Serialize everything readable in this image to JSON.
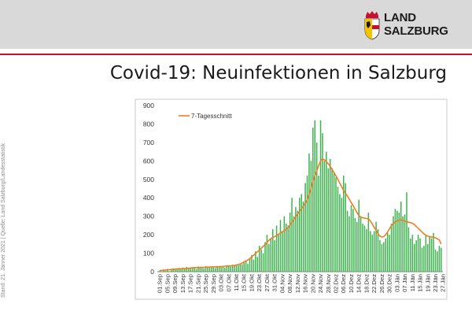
{
  "header": {
    "logo_line1": "LAND",
    "logo_line2": "SALZBURG",
    "title": "Covid-19: Neuinfektionen in Salzburg"
  },
  "side_note": "Stand: 21. Jänner 2021 | Quelle: Land Salzburg/Landesstatistik",
  "colors": {
    "bar": "#3fb34f",
    "avg_line": "#ef7d22",
    "accent_red": "#c8102e",
    "header_band": "#d9d9d9"
  },
  "chart_data": {
    "type": "bar",
    "title": "Covid-19: Neuinfektionen in Salzburg",
    "xlabel": "",
    "ylabel": "",
    "ylim": [
      0,
      900
    ],
    "yticks": [
      0,
      100,
      200,
      300,
      400,
      500,
      600,
      700,
      800,
      900
    ],
    "grid": false,
    "legend": [
      {
        "name": "7-Tagesschnitt",
        "position": "top-left"
      }
    ],
    "date_labels": [
      "01.Sep",
      "05.Sep",
      "09.Sep",
      "13.Sep",
      "17.Sep",
      "21.Sep",
      "25.Sep",
      "29.Sep",
      "03.Okt",
      "07.Okt",
      "11.Okt",
      "15.Okt",
      "19.Okt",
      "23.Okt",
      "27.Okt",
      "31.Okt",
      "04.Nov",
      "08.Nov",
      "12.Nov",
      "16.Nov",
      "20.Nov",
      "24.Nov",
      "28.Nov",
      "02.Dez",
      "06.Dez",
      "10.Dez",
      "14.Dez",
      "18.Dez",
      "22.Dez",
      "26.Dez",
      "30.Dez",
      "03.Jän",
      "07.Jän",
      "11.Jän",
      "15.Jän",
      "19.Jän",
      "23.Jän",
      "27.Jän"
    ],
    "series": [
      {
        "name": "Neuinfektionen",
        "kind": "bar",
        "values": [
          8,
          2,
          12,
          4,
          15,
          3,
          10,
          18,
          15,
          12,
          20,
          14,
          22,
          16,
          25,
          18,
          20,
          22,
          25,
          15,
          28,
          20,
          24,
          18,
          30,
          26,
          22,
          28,
          25,
          20,
          30,
          28,
          25,
          30,
          22,
          35,
          30,
          28,
          38,
          32,
          40,
          35,
          45,
          40,
          55,
          60,
          42,
          70,
          90,
          65,
          110,
          80,
          140,
          120,
          100,
          160,
          200,
          150,
          180,
          230,
          170,
          250,
          200,
          280,
          220,
          300,
          260,
          250,
          320,
          400,
          300,
          350,
          330,
          400,
          420,
          380,
          480,
          520,
          640,
          600,
          780,
          820,
          700,
          520,
          820,
          750,
          600,
          650,
          560,
          610,
          560,
          540,
          510,
          460,
          420,
          400,
          520,
          480,
          330,
          300,
          360,
          340,
          290,
          270,
          390,
          300,
          260,
          250,
          230,
          320,
          220,
          200,
          220,
          270,
          230,
          170,
          150,
          160,
          180,
          210,
          200,
          260,
          300,
          340,
          330,
          320,
          380,
          300,
          310,
          430,
          240,
          180,
          200,
          150,
          170,
          200,
          180,
          130,
          140,
          200,
          150,
          190,
          180,
          210,
          120,
          110,
          140,
          130
        ],
        "color": "#3fb34f"
      },
      {
        "name": "7-Tagesschnitt",
        "kind": "line",
        "values": [
          6,
          7,
          8,
          9,
          10,
          11,
          12,
          13,
          14,
          15,
          15,
          16,
          17,
          17,
          18,
          19,
          20,
          21,
          21,
          22,
          22,
          23,
          23,
          24,
          24,
          25,
          25,
          26,
          26,
          26,
          27,
          27,
          28,
          28,
          29,
          30,
          31,
          32,
          33,
          34,
          36,
          39,
          42,
          47,
          53,
          58,
          63,
          71,
          80,
          89,
          98,
          108,
          117,
          127,
          137,
          146,
          158,
          170,
          179,
          186,
          190,
          196,
          203,
          210,
          216,
          223,
          230,
          237,
          252,
          268,
          282,
          297,
          312,
          327,
          341,
          356,
          370,
          390,
          420,
          450,
          490,
          520,
          545,
          575,
          601,
          611,
          606,
          596,
          585,
          570,
          554,
          537,
          519,
          500,
          480,
          460,
          440,
          425,
          410,
          392,
          374,
          357,
          340,
          320,
          305,
          295,
          292,
          290,
          288,
          286,
          275,
          258,
          240,
          225,
          205,
          193,
          188,
          190,
          200,
          215,
          232,
          250,
          262,
          270,
          275,
          278,
          280,
          278,
          274,
          270,
          268,
          266,
          262,
          255,
          245,
          235,
          225,
          215,
          205,
          197,
          193,
          190,
          188,
          186,
          184,
          178,
          172,
          150
        ],
        "color": "#ef7d22"
      }
    ]
  }
}
